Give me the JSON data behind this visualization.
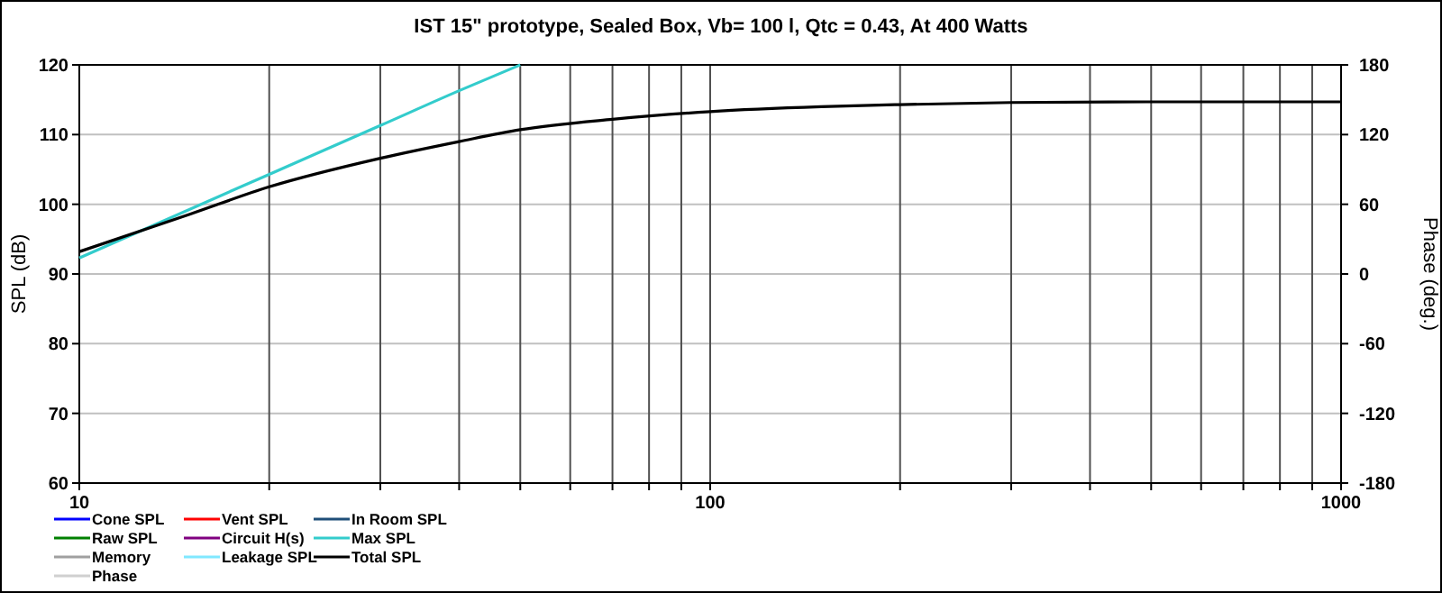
{
  "chart_data": {
    "type": "line",
    "title": "IST 15\" prototype,  Sealed Box, Vb= 100 l,  Qtc = 0.43,  At 400 Watts",
    "ylabel": "SPL (dB)",
    "y2label": "Phase (deg.)",
    "log": "x",
    "grid": true,
    "legend": "bottom left",
    "marker": "none",
    "line_style": "solid",
    "x": [
      10,
      15,
      20,
      30,
      40,
      50,
      70,
      100,
      150,
      200,
      300,
      500,
      1000
    ],
    "xlim": [
      10,
      1000
    ],
    "xticks": [
      10,
      {
        "value": 20,
        "label": null
      },
      {
        "value": 30,
        "label": null
      },
      {
        "value": 40,
        "label": null
      },
      {
        "value": 50,
        "label": null
      },
      {
        "value": 60,
        "label": null
      },
      {
        "value": 70,
        "label": null
      },
      {
        "value": 80,
        "label": null
      },
      {
        "value": 90,
        "label": null
      },
      100,
      {
        "value": 200,
        "label": null
      },
      {
        "value": 300,
        "label": null
      },
      {
        "value": 400,
        "label": null
      },
      {
        "value": 500,
        "label": null
      },
      {
        "value": 600,
        "label": null
      },
      {
        "value": 700,
        "label": null
      },
      {
        "value": 800,
        "label": null
      },
      {
        "value": 900,
        "label": null
      },
      1000
    ],
    "ylim": [
      60,
      120
    ],
    "yticks": [
      60,
      70,
      80,
      90,
      100,
      110,
      120
    ],
    "y2lim": [
      -180,
      180
    ],
    "y2ticks": [
      -180,
      -120,
      -60,
      0,
      60,
      120,
      180
    ],
    "series": [
      {
        "name": "Cone SPL",
        "color": "#0000ff",
        "values": [
          null,
          null,
          null,
          null,
          null,
          null,
          null,
          null,
          null,
          null,
          null,
          null,
          null
        ]
      },
      {
        "name": "Vent SPL",
        "color": "#ff0000",
        "values": [
          null,
          null,
          null,
          null,
          null,
          null,
          null,
          null,
          null,
          null,
          null,
          null,
          null
        ]
      },
      {
        "name": "In Room SPL",
        "color": "#1f4e79",
        "values": [
          null,
          null,
          null,
          null,
          null,
          null,
          null,
          null,
          null,
          null,
          null,
          null,
          null
        ]
      },
      {
        "name": "Raw SPL",
        "color": "#008000",
        "values": [
          null,
          null,
          null,
          null,
          null,
          null,
          null,
          null,
          null,
          null,
          null,
          null,
          null
        ]
      },
      {
        "name": "Circuit H(s)",
        "color": "#800080",
        "values": [
          null,
          null,
          null,
          null,
          null,
          null,
          null,
          null,
          null,
          null,
          null,
          null,
          null
        ]
      },
      {
        "name": "Max SPL",
        "color": "#33cccc",
        "x": [
          10,
          20,
          30,
          40,
          50
        ],
        "values": [
          92.3,
          104.3,
          111.3,
          116.3,
          120
        ]
      },
      {
        "name": "Memory",
        "color": "#a0a0a0",
        "values": [
          null,
          null,
          null,
          null,
          null,
          null,
          null,
          null,
          null,
          null,
          null,
          null,
          null
        ]
      },
      {
        "name": "Leakage SPL",
        "color": "#80e8ff",
        "values": [
          null,
          null,
          null,
          null,
          null,
          null,
          null,
          null,
          null,
          null,
          null,
          null,
          null
        ]
      },
      {
        "name": "Total SPL",
        "color": "#000000",
        "values": [
          93.2,
          98.6,
          102.5,
          106.6,
          109.0,
          110.7,
          112.2,
          113.3,
          114.0,
          114.3,
          114.6,
          114.7,
          114.7
        ]
      },
      {
        "name": "Phase",
        "color": "#d0d0d0",
        "values": [
          null,
          null,
          null,
          null,
          null,
          null,
          null,
          null,
          null,
          null,
          null,
          null,
          null
        ]
      }
    ]
  }
}
